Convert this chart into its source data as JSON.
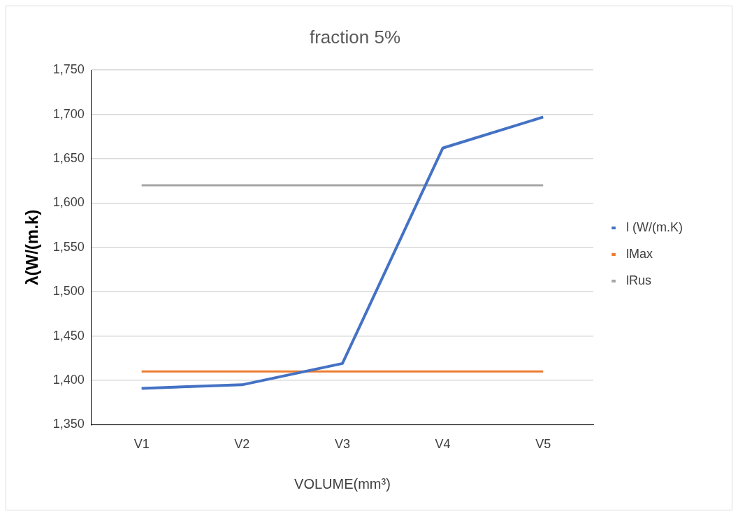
{
  "chart_data": {
    "type": "line",
    "title": "fraction 5%",
    "xlabel": "VOLUME(mm³)",
    "ylabel": "λ(W/(m.k)",
    "categories": [
      "V1",
      "V2",
      "V3",
      "V4",
      "V5"
    ],
    "series": [
      {
        "name": "l (W/(m.K)",
        "color": "#4472c4",
        "values": [
          1391,
          1395,
          1419,
          1662,
          1697
        ]
      },
      {
        "name": "lMax",
        "color": "#ed7d31",
        "values": [
          1410,
          1410,
          1410,
          1410,
          1410
        ]
      },
      {
        "name": "lRus",
        "color": "#a5a5a5",
        "values": [
          1620,
          1620,
          1620,
          1620,
          1620
        ]
      }
    ],
    "ylim": [
      1350,
      1750
    ],
    "yticks": [
      {
        "value": 1350,
        "label": "1,350"
      },
      {
        "value": 1400,
        "label": "1,400"
      },
      {
        "value": 1450,
        "label": "1,450"
      },
      {
        "value": 1500,
        "label": "1,500"
      },
      {
        "value": 1550,
        "label": "1,550"
      },
      {
        "value": 1600,
        "label": "1,600"
      },
      {
        "value": 1650,
        "label": "1,650"
      },
      {
        "value": 1700,
        "label": "1,700"
      },
      {
        "value": 1750,
        "label": "1,750"
      }
    ],
    "grid": "y",
    "legend": "right"
  }
}
